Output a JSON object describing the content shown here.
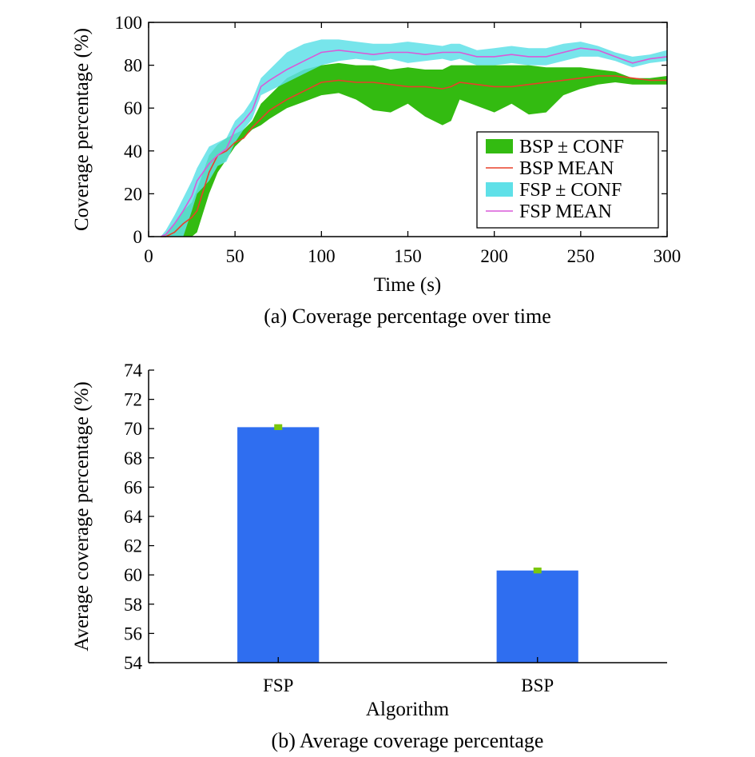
{
  "colors": {
    "bsp_band": "#33bb11",
    "bsp_mean": "#e8402a",
    "fsp_band": "#5fe0e8",
    "fsp_mean": "#d95ad8",
    "bar": "#2f6ef0",
    "err": "#7ac70c"
  },
  "chart_data": [
    {
      "type": "area",
      "caption": "(a) Coverage percentage over time",
      "xlabel": "Time (s)",
      "ylabel": "Coverage percentage (%)",
      "xlim": [
        0,
        300
      ],
      "ylim": [
        0,
        100
      ],
      "xticks": [
        "0",
        "50",
        "100",
        "150",
        "200",
        "250",
        "300"
      ],
      "yticks": [
        "0",
        "20",
        "40",
        "60",
        "80",
        "100"
      ],
      "legend_position": "bottom-right",
      "grid": false,
      "x": [
        7,
        10,
        15,
        20,
        25,
        28,
        35,
        40,
        45,
        50,
        55,
        60,
        65,
        70,
        80,
        90,
        100,
        110,
        120,
        130,
        140,
        150,
        160,
        170,
        175,
        180,
        190,
        200,
        210,
        220,
        230,
        240,
        250,
        260,
        270,
        280,
        290,
        300
      ],
      "series": [
        {
          "name": "BSP ± CONF",
          "role": "band",
          "lower": [
            0,
            0,
            0,
            0,
            0,
            2,
            20,
            30,
            36,
            42,
            46,
            50,
            52,
            55,
            60,
            63,
            66,
            67,
            64,
            59,
            58,
            62,
            56,
            52,
            54,
            64,
            61,
            58,
            62,
            57,
            58,
            66,
            69,
            71,
            72,
            71,
            71,
            71
          ],
          "upper": [
            0,
            1,
            6,
            12,
            16,
            22,
            38,
            43,
            46,
            48,
            50,
            54,
            62,
            66,
            74,
            78,
            80,
            81,
            80,
            80,
            78,
            79,
            78,
            78,
            80,
            80,
            80,
            80,
            80,
            80,
            79,
            79,
            79,
            78,
            77,
            74,
            74,
            75
          ]
        },
        {
          "name": "BSP MEAN",
          "role": "mean",
          "values": [
            0,
            0,
            2,
            6,
            9,
            12,
            30,
            38,
            40,
            44,
            46,
            51,
            55,
            59,
            64,
            68,
            72,
            73,
            72,
            72,
            71,
            70,
            70,
            69,
            70,
            72,
            71,
            70,
            70,
            71,
            72,
            73,
            74,
            75,
            75,
            74,
            73,
            73
          ]
        },
        {
          "name": "FSP ± CONF",
          "role": "band",
          "lower": [
            0,
            0,
            0,
            0,
            12,
            20,
            26,
            33,
            35,
            44,
            50,
            55,
            66,
            68,
            72,
            76,
            80,
            82,
            83,
            82,
            83,
            81,
            82,
            83,
            82,
            83,
            80,
            80,
            81,
            80,
            80,
            82,
            84,
            84,
            82,
            79,
            81,
            82
          ],
          "upper": [
            0,
            3,
            10,
            18,
            26,
            32,
            42,
            44,
            46,
            54,
            58,
            64,
            74,
            78,
            86,
            90,
            92,
            92,
            91,
            90,
            90,
            91,
            90,
            89,
            90,
            90,
            87,
            88,
            89,
            88,
            88,
            90,
            91,
            89,
            86,
            84,
            85,
            87
          ]
        },
        {
          "name": "FSP MEAN",
          "role": "mean",
          "values": [
            0,
            1,
            6,
            12,
            19,
            26,
            34,
            38,
            41,
            50,
            54,
            59,
            70,
            73,
            78,
            82,
            86,
            87,
            86,
            85,
            86,
            86,
            85,
            86,
            86,
            86,
            84,
            84,
            85,
            84,
            84,
            86,
            88,
            87,
            84,
            81,
            83,
            84
          ]
        }
      ]
    },
    {
      "type": "bar",
      "caption": "(b) Average coverage percentage",
      "xlabel": "Algorithm",
      "ylabel": "Average coverage percentage (%)",
      "ylim": [
        54,
        74
      ],
      "yticks": [
        "54",
        "56",
        "58",
        "60",
        "62",
        "64",
        "66",
        "68",
        "70",
        "72",
        "74"
      ],
      "categories": [
        "FSP",
        "BSP"
      ],
      "values": [
        70.1,
        60.3
      ],
      "error": [
        0.2,
        0.2
      ],
      "grid": false
    }
  ]
}
